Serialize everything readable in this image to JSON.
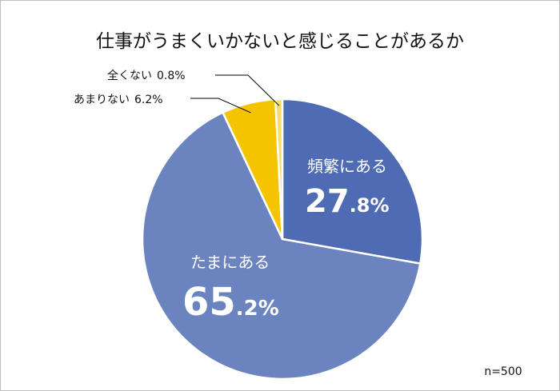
{
  "chart_data": {
    "type": "pie",
    "title": "仕事がうまくいかないと感じることがあるか",
    "note": "n=500",
    "slices": [
      {
        "label": "頻繁にある",
        "value": 27.8,
        "int": "27",
        "dec": ".8%",
        "color": "#4e6bb4"
      },
      {
        "label": "たまにある",
        "value": 65.2,
        "int": "65",
        "dec": ".2%",
        "color": "#6b83bf"
      },
      {
        "label": "あまりない",
        "value": 6.2,
        "text": "6.2%",
        "color": "#f5c400"
      },
      {
        "label": "全くない",
        "value": 0.8,
        "text": "0.8%",
        "color": "#f6dc68"
      }
    ],
    "slice_border": "#ffffff",
    "leader_color": "#000000"
  }
}
